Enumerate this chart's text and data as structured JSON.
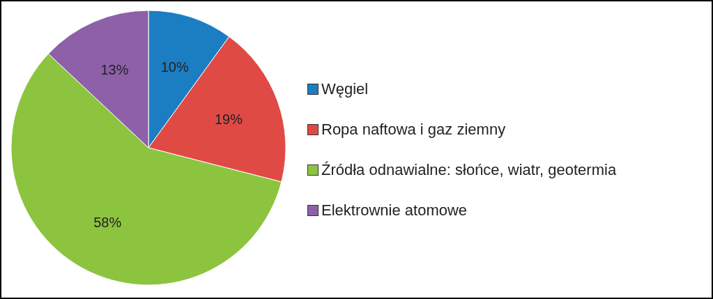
{
  "chart_data": {
    "type": "pie",
    "categories": [
      "Węgiel",
      "Ropa naftowa i gaz ziemny",
      "Źródła odnawialne: słońce, wiatr, geotermia",
      "Elektrownie atomowe"
    ],
    "values": [
      10,
      19,
      58,
      13
    ],
    "colors": [
      "#1b7ec2",
      "#e04a45",
      "#8cc43f",
      "#8e60a8"
    ],
    "value_labels": [
      "10%",
      "19%",
      "58%",
      "13%"
    ],
    "legend": "right"
  }
}
